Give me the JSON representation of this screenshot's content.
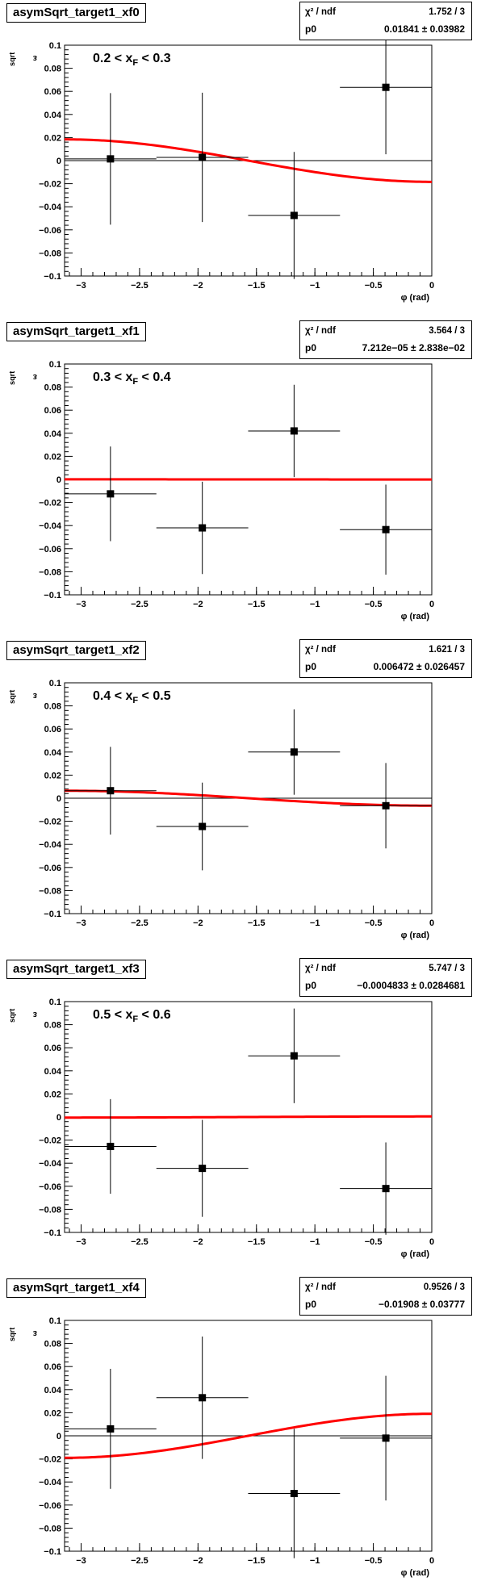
{
  "chart_data": [
    {
      "type": "scatter",
      "title": "asymSqrt_target1_xf0",
      "range_label": {
        "pre": "0.2 < x",
        "sub": "F",
        "post": " < 0.3"
      },
      "xlabel": "φ (rad)",
      "ylabel_main": "ε",
      "ylabel_sub": "sqrt",
      "xlim": [
        -3.14159,
        0
      ],
      "ylim": [
        -0.1,
        0.1
      ],
      "x_ticks": [
        -3,
        -2.5,
        -2,
        -1.5,
        -1,
        -0.5,
        0
      ],
      "x_tick_labels": [
        "−3",
        "−2.5",
        "−2",
        "−1.5",
        "−1",
        "−0.5",
        "0"
      ],
      "y_ticks": [
        -0.1,
        -0.08,
        -0.06,
        -0.04,
        -0.02,
        0,
        0.02,
        0.04,
        0.06,
        0.08,
        0.1
      ],
      "y_tick_labels": [
        "−0.1",
        "−0.08",
        "−0.06",
        "−0.04",
        "−0.02",
        "0",
        "0.02",
        "0.04",
        "0.06",
        "0.08",
        "0.1"
      ],
      "stats": {
        "chi2_label": "χ² / ndf",
        "chi2_value": "1.752 / 3",
        "p0_label": "p0",
        "p0_value": "0.01841 ± 0.03982"
      },
      "fit_p0": 0.01841,
      "points": [
        {
          "x": -2.749,
          "y": 0.0015,
          "xerr": 0.393,
          "yerr": 0.057
        },
        {
          "x": -1.963,
          "y": 0.0028,
          "xerr": 0.393,
          "yerr": 0.056
        },
        {
          "x": -1.178,
          "y": -0.0475,
          "xerr": 0.393,
          "yerr": 0.055
        },
        {
          "x": -0.393,
          "y": 0.0635,
          "xerr": 0.393,
          "yerr": 0.058
        }
      ]
    },
    {
      "type": "scatter",
      "title": "asymSqrt_target1_xf1",
      "range_label": {
        "pre": "0.3 < x",
        "sub": "F",
        "post": " < 0.4"
      },
      "xlabel": "φ (rad)",
      "ylabel_main": "ε",
      "ylabel_sub": "sqrt",
      "xlim": [
        -3.14159,
        0
      ],
      "ylim": [
        -0.1,
        0.1
      ],
      "x_ticks": [
        -3,
        -2.5,
        -2,
        -1.5,
        -1,
        -0.5,
        0
      ],
      "x_tick_labels": [
        "−3",
        "−2.5",
        "−2",
        "−1.5",
        "−1",
        "−0.5",
        "0"
      ],
      "y_ticks": [
        -0.1,
        -0.08,
        -0.06,
        -0.04,
        -0.02,
        0,
        0.02,
        0.04,
        0.06,
        0.08,
        0.1
      ],
      "y_tick_labels": [
        "−0.1",
        "−0.08",
        "−0.06",
        "−0.04",
        "−0.02",
        "0",
        "0.02",
        "0.04",
        "0.06",
        "0.08",
        "0.1"
      ],
      "stats": {
        "chi2_label": "χ² / ndf",
        "chi2_value": "3.564 / 3",
        "p0_label": "p0",
        "p0_value": "7.212e−05 ± 2.838e−02"
      },
      "fit_p0": 7.212e-05,
      "points": [
        {
          "x": -2.749,
          "y": -0.0125,
          "xerr": 0.393,
          "yerr": 0.041
        },
        {
          "x": -1.963,
          "y": -0.042,
          "xerr": 0.393,
          "yerr": 0.04
        },
        {
          "x": -1.178,
          "y": 0.042,
          "xerr": 0.393,
          "yerr": 0.04
        },
        {
          "x": -0.393,
          "y": -0.0435,
          "xerr": 0.393,
          "yerr": 0.039
        }
      ]
    },
    {
      "type": "scatter",
      "title": "asymSqrt_target1_xf2",
      "range_label": {
        "pre": "0.4 < x",
        "sub": "F",
        "post": " < 0.5"
      },
      "xlabel": "φ (rad)",
      "ylabel_main": "ε",
      "ylabel_sub": "sqrt",
      "xlim": [
        -3.14159,
        0
      ],
      "ylim": [
        -0.1,
        0.1
      ],
      "x_ticks": [
        -3,
        -2.5,
        -2,
        -1.5,
        -1,
        -0.5,
        0
      ],
      "x_tick_labels": [
        "−3",
        "−2.5",
        "−2",
        "−1.5",
        "−1",
        "−0.5",
        "0"
      ],
      "y_ticks": [
        -0.1,
        -0.08,
        -0.06,
        -0.04,
        -0.02,
        0,
        0.02,
        0.04,
        0.06,
        0.08,
        0.1
      ],
      "y_tick_labels": [
        "−0.1",
        "−0.08",
        "−0.06",
        "−0.04",
        "−0.02",
        "0",
        "0.02",
        "0.04",
        "0.06",
        "0.08",
        "0.1"
      ],
      "stats": {
        "chi2_label": "χ² / ndf",
        "chi2_value": "1.621 / 3",
        "p0_label": "p0",
        "p0_value": "0.006472 ± 0.026457"
      },
      "fit_p0": 0.006472,
      "points": [
        {
          "x": -2.749,
          "y": 0.0065,
          "xerr": 0.393,
          "yerr": 0.038
        },
        {
          "x": -1.963,
          "y": -0.0245,
          "xerr": 0.393,
          "yerr": 0.038
        },
        {
          "x": -1.178,
          "y": 0.04,
          "xerr": 0.393,
          "yerr": 0.037
        },
        {
          "x": -0.393,
          "y": -0.0065,
          "xerr": 0.393,
          "yerr": 0.037
        }
      ]
    },
    {
      "type": "scatter",
      "title": "asymSqrt_target1_xf3",
      "range_label": {
        "pre": "0.5 < x",
        "sub": "F",
        "post": " < 0.6"
      },
      "xlabel": "φ (rad)",
      "ylabel_main": "ε",
      "ylabel_sub": "sqrt",
      "xlim": [
        -3.14159,
        0
      ],
      "ylim": [
        -0.1,
        0.1
      ],
      "x_ticks": [
        -3,
        -2.5,
        -2,
        -1.5,
        -1,
        -0.5,
        0
      ],
      "x_tick_labels": [
        "−3",
        "−2.5",
        "−2",
        "−1.5",
        "−1",
        "−0.5",
        "0"
      ],
      "y_ticks": [
        -0.1,
        -0.08,
        -0.06,
        -0.04,
        -0.02,
        0,
        0.02,
        0.04,
        0.06,
        0.08,
        0.1
      ],
      "y_tick_labels": [
        "−0.1",
        "−0.08",
        "−0.06",
        "−0.04",
        "−0.02",
        "0",
        "0.02",
        "0.04",
        "0.06",
        "0.08",
        "0.1"
      ],
      "stats": {
        "chi2_label": "χ² / ndf",
        "chi2_value": "5.747 / 3",
        "p0_label": "p0",
        "p0_value": "−0.0004833 ± 0.0284681"
      },
      "fit_p0": -0.0004833,
      "points": [
        {
          "x": -2.749,
          "y": -0.0255,
          "xerr": 0.393,
          "yerr": 0.041
        },
        {
          "x": -1.963,
          "y": -0.0445,
          "xerr": 0.393,
          "yerr": 0.042
        },
        {
          "x": -1.178,
          "y": 0.053,
          "xerr": 0.393,
          "yerr": 0.041
        },
        {
          "x": -0.393,
          "y": -0.062,
          "xerr": 0.393,
          "yerr": 0.04
        }
      ]
    },
    {
      "type": "scatter",
      "title": "asymSqrt_target1_xf4",
      "range_label": {
        "pre": "",
        "sub": "",
        "post": ""
      },
      "xlabel": "φ (rad)",
      "ylabel_main": "ε",
      "ylabel_sub": "sqrt",
      "xlim": [
        -3.14159,
        0
      ],
      "ylim": [
        -0.1,
        0.1
      ],
      "x_ticks": [
        -3,
        -2.5,
        -2,
        -1.5,
        -1,
        -0.5,
        0
      ],
      "x_tick_labels": [
        "−3",
        "−2.5",
        "−2",
        "−1.5",
        "−1",
        "−0.5",
        "0"
      ],
      "y_ticks": [
        -0.1,
        -0.08,
        -0.06,
        -0.04,
        -0.02,
        0,
        0.02,
        0.04,
        0.06,
        0.08,
        0.1
      ],
      "y_tick_labels": [
        "−0.1",
        "−0.08",
        "−0.06",
        "−0.04",
        "−0.02",
        "0",
        "0.02",
        "0.04",
        "0.06",
        "0.08",
        "0.1"
      ],
      "stats": {
        "chi2_label": "χ² / ndf",
        "chi2_value": "0.9526 / 3",
        "p0_label": "p0",
        "p0_value": "−0.01908 ± 0.03777"
      },
      "fit_p0": -0.01908,
      "points": [
        {
          "x": -2.749,
          "y": 0.006,
          "xerr": 0.393,
          "yerr": 0.052
        },
        {
          "x": -1.963,
          "y": 0.033,
          "xerr": 0.393,
          "yerr": 0.053
        },
        {
          "x": -1.178,
          "y": -0.05,
          "xerr": 0.393,
          "yerr": 0.056
        },
        {
          "x": -0.393,
          "y": -0.002,
          "xerr": 0.393,
          "yerr": 0.054
        }
      ]
    }
  ],
  "colors": {
    "fit": "#ff0000",
    "marker": "#000000",
    "axis": "#000000"
  }
}
